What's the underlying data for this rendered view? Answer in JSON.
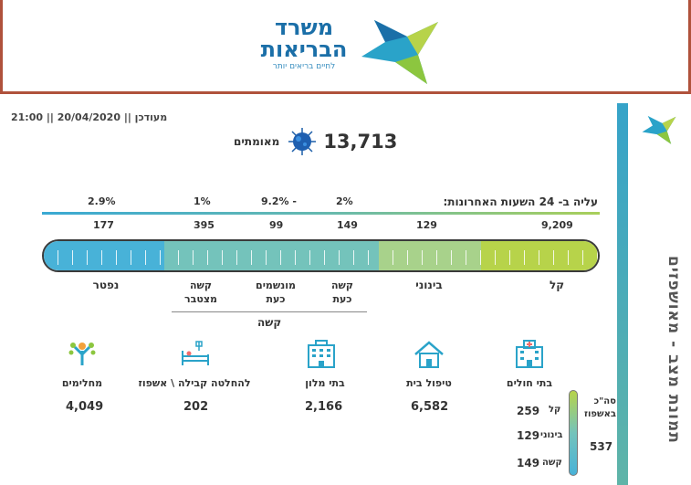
{
  "header": {
    "logo_line1": "משרד",
    "logo_line2": "הבריאות",
    "logo_slogan": "לחיים בריאים יותר"
  },
  "side": {
    "title": "תמונת מצב - מאושפזים"
  },
  "status": {
    "updated": "מעודכן || 20/04/2020 || 21:00",
    "confirmed_label": "מאומתים",
    "confirmed_value": "13,713"
  },
  "rise": {
    "label": "עליה ב- 24 השעות האחרונות:",
    "dead_pct": "2.9%",
    "cumulative_severe_pct": "1%",
    "ventilated_pct": "9.2% -",
    "severe_now_pct": "2%"
  },
  "counts": {
    "dead": "177",
    "cumulative_severe": "395",
    "ventilated": "99",
    "severe_now": "149",
    "moderate": "129",
    "mild": "9,209"
  },
  "categories": {
    "dead": "נפטר",
    "cumulative_severe_l1": "קשה",
    "cumulative_severe_l2": "מצטבר",
    "ventilated_l1": "מונשמים",
    "ventilated_l2": "כעת",
    "severe_now_l1": "קשה",
    "severe_now_l2": "כעת",
    "moderate": "בינוני",
    "mild": "קל",
    "severe_group": "קשה"
  },
  "stats": {
    "recovered_label": "מחלימים",
    "recovered_value": "4,049",
    "pending_label": "להחלטה קבילה \\ אשפוז",
    "pending_value": "202",
    "hotels_label": "בתי מלון",
    "hotels_value": "2,166",
    "home_label": "טיפול בית",
    "home_value": "6,582",
    "hospitals_label": "בתי חולים"
  },
  "hospital": {
    "mild_label": "קל",
    "mild_value": "259",
    "moderate_label": "בינוני",
    "moderate_value": "129",
    "severe_label": "קשה",
    "severe_value": "149",
    "total_label_l1": "סה\"כ",
    "total_label_l2": "באשפוז",
    "total_value": "537"
  },
  "colors": {
    "brand_blue": "#1b6fa8",
    "frame": "#b0523c",
    "dead_segment": "#48b2d8",
    "severe_segment": "#74c3bb",
    "moderate_segment": "#a8d28b",
    "mild_segment": "#b7d34a"
  },
  "icons": [
    "virus-icon",
    "hospital-icon",
    "house-icon",
    "hotel-icon",
    "hospital-bed-icon",
    "recovered-person-icon",
    "ministry-logo-icon"
  ]
}
